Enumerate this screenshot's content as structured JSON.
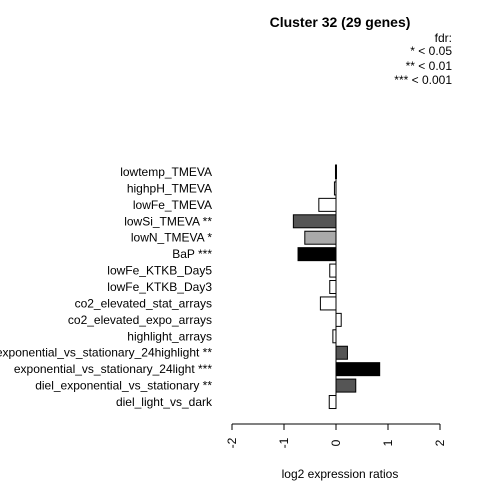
{
  "chart_data": {
    "type": "bar",
    "orientation": "horizontal",
    "title": "Cluster 32 (29 genes)",
    "xlabel": "log2 expression ratios",
    "xlim": [
      -2,
      2
    ],
    "xticks": [
      "-2",
      "-1",
      "0",
      "1",
      "2"
    ],
    "legend": {
      "title": "fdr:",
      "entries": [
        "* < 0.05",
        "** < 0.01",
        "*** < 0.001"
      ],
      "position": "top-right"
    },
    "categories": [
      "lowtemp_TMEVA",
      "highpH_TMEVA",
      "lowFe_TMEVA",
      "lowSi_TMEVA **",
      "lowN_TMEVA *",
      "BaP ***",
      "lowFe_KTKB_Day5",
      "lowFe_KTKB_Day3",
      "co2_elevated_stat_arrays",
      "co2_elevated_expo_arrays",
      "highlight_arrays",
      "exponential_vs_stationary_24highlight **",
      "exponential_vs_stationary_24light ***",
      "diel_exponential_vs_stationary **",
      "diel_light_vs_dark"
    ],
    "values": [
      -0.01,
      -0.03,
      -0.33,
      -0.82,
      -0.6,
      -0.73,
      -0.12,
      -0.12,
      -0.3,
      0.1,
      -0.06,
      0.22,
      0.84,
      0.38,
      -0.13
    ],
    "bar_colors": [
      "#ffffff",
      "#ffffff",
      "#ffffff",
      "#555555",
      "#aaaaaa",
      "#000000",
      "#ffffff",
      "#ffffff",
      "#ffffff",
      "#ffffff",
      "#ffffff",
      "#555555",
      "#000000",
      "#555555",
      "#ffffff"
    ]
  }
}
